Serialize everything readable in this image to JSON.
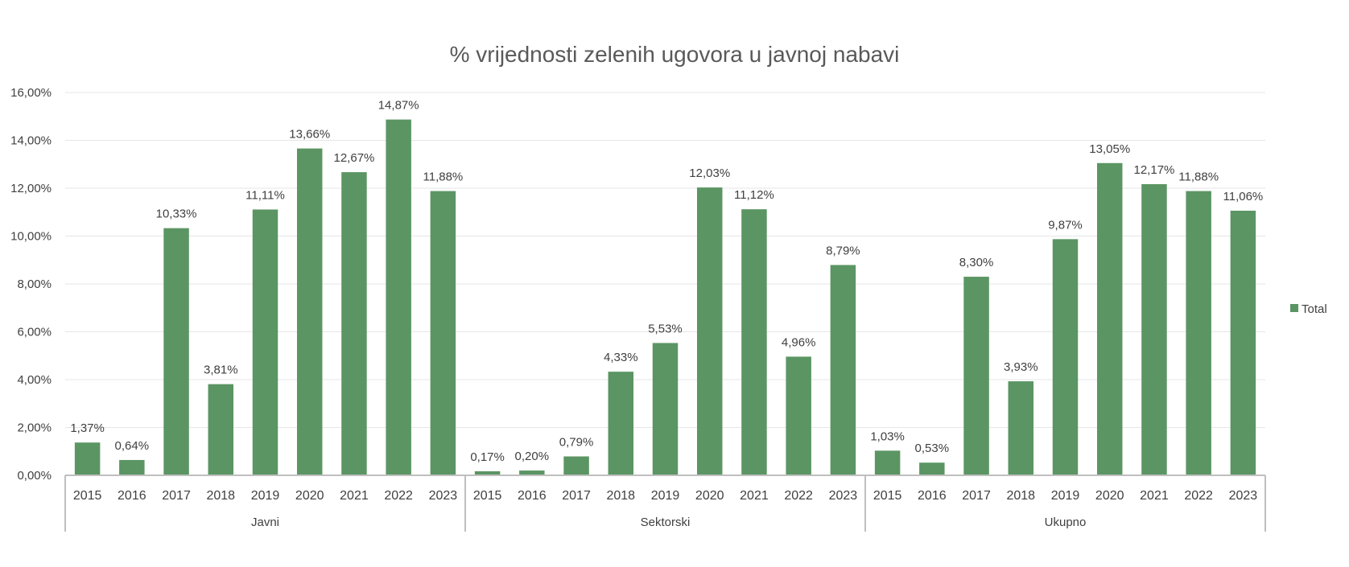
{
  "chart_data": {
    "type": "bar",
    "title": "% vrijednosti zelenih ugovora u javnoj nabavi",
    "xlabel": "",
    "ylabel": "",
    "ylim": [
      0,
      16
    ],
    "y_ticks": [
      "0,00%",
      "2,00%",
      "4,00%",
      "6,00%",
      "8,00%",
      "10,00%",
      "12,00%",
      "14,00%",
      "16,00%"
    ],
    "y_tick_values": [
      0,
      2,
      4,
      6,
      8,
      10,
      12,
      14,
      16
    ],
    "grid": true,
    "legend_position": "right",
    "bar_color": "#5B9563",
    "groups": [
      {
        "name": "Javni",
        "categories": [
          "2015",
          "2016",
          "2017",
          "2018",
          "2019",
          "2020",
          "2021",
          "2022",
          "2023"
        ],
        "values": [
          1.37,
          0.64,
          10.33,
          3.81,
          11.11,
          13.66,
          12.67,
          14.87,
          11.88
        ],
        "labels": [
          "1,37%",
          "0,64%",
          "10,33%",
          "3,81%",
          "11,11%",
          "13,66%",
          "12,67%",
          "14,87%",
          "11,88%"
        ]
      },
      {
        "name": "Sektorski",
        "categories": [
          "2015",
          "2016",
          "2017",
          "2018",
          "2019",
          "2020",
          "2021",
          "2022",
          "2023"
        ],
        "values": [
          0.17,
          0.2,
          0.79,
          4.33,
          5.53,
          12.03,
          11.12,
          4.96,
          8.79
        ],
        "labels": [
          "0,17%",
          "0,20%",
          "0,79%",
          "4,33%",
          "5,53%",
          "12,03%",
          "11,12%",
          "4,96%",
          "8,79%"
        ]
      },
      {
        "name": "Ukupno",
        "categories": [
          "2015",
          "2016",
          "2017",
          "2018",
          "2019",
          "2020",
          "2021",
          "2022",
          "2023"
        ],
        "values": [
          1.03,
          0.53,
          8.3,
          3.93,
          9.87,
          13.05,
          12.17,
          11.88,
          11.06
        ],
        "labels": [
          "1,03%",
          "0,53%",
          "8,30%",
          "3,93%",
          "9,87%",
          "13,05%",
          "12,17%",
          "11,88%",
          "11,06%"
        ]
      }
    ],
    "series": [
      {
        "name": "Total"
      }
    ]
  }
}
